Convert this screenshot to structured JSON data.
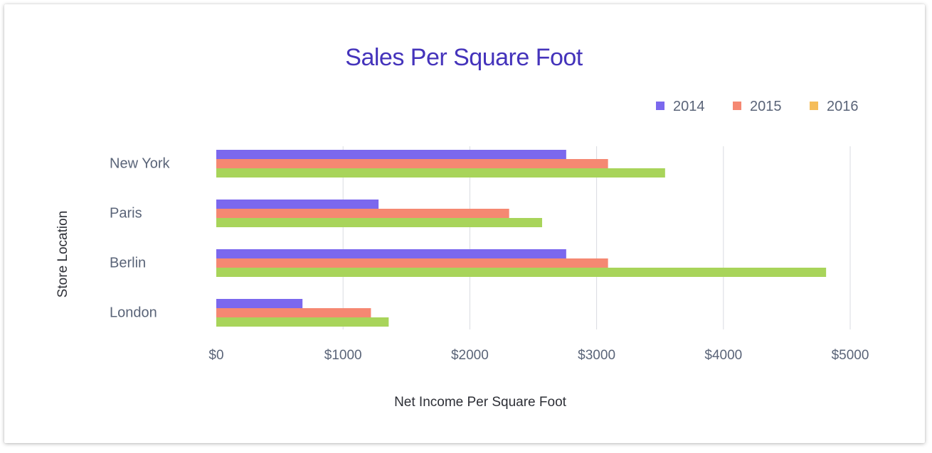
{
  "chart_data": {
    "type": "bar",
    "orientation": "horizontal",
    "title": "Sales Per Square Foot",
    "xlabel": "Net Income Per Square Foot",
    "ylabel": "Store Location",
    "categories": [
      "New York",
      "Paris",
      "Berlin",
      "London"
    ],
    "series": [
      {
        "name": "2014",
        "color": "#7b68ee",
        "values": [
          2760,
          1280,
          2760,
          680
        ]
      },
      {
        "name": "2015",
        "color": "#f58872",
        "values": [
          3090,
          2310,
          3090,
          1220
        ]
      },
      {
        "name": "2016",
        "color": "#f5bd5a",
        "bar_color": "#a8d45a",
        "values": [
          3540,
          2570,
          4810,
          1360
        ]
      }
    ],
    "xlim": [
      0,
      5000
    ],
    "x_ticks": [
      {
        "value": 0,
        "label": "$0"
      },
      {
        "value": 1000,
        "label": "$1000"
      },
      {
        "value": 2000,
        "label": "$2000"
      },
      {
        "value": 3000,
        "label": "$3000"
      },
      {
        "value": 4000,
        "label": "$4000"
      },
      {
        "value": 5000,
        "label": "$5000"
      }
    ],
    "grid": true,
    "legend_position": "top-right",
    "title_color": "#4433bb"
  }
}
